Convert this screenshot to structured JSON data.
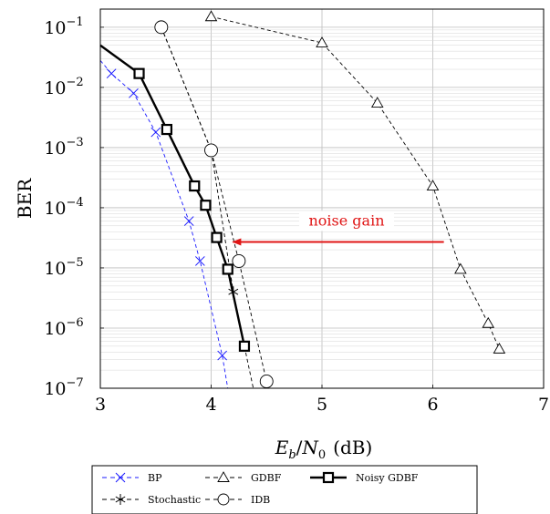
{
  "chart_data": {
    "type": "line",
    "xlabel": "E_b/N_0 (dB)",
    "xlabel_parts": {
      "e": "E",
      "b": "b",
      "slash": "/",
      "n": "N",
      "zero": "0",
      "unit": "(dB)"
    },
    "ylabel": "BER",
    "x_ticks": [
      "3",
      "4",
      "5",
      "6",
      "7"
    ],
    "y_ticks": [
      {
        "base": "10",
        "exp": "−1"
      },
      {
        "base": "10",
        "exp": "−2"
      },
      {
        "base": "10",
        "exp": "−3"
      },
      {
        "base": "10",
        "exp": "−4"
      },
      {
        "base": "10",
        "exp": "−5"
      },
      {
        "base": "10",
        "exp": "−6"
      },
      {
        "base": "10",
        "exp": "−7"
      }
    ],
    "xlim": [
      3,
      7
    ],
    "ylim": [
      1e-07,
      0.2
    ],
    "y_scale": "log",
    "grid": true,
    "legend_position": "below",
    "series": [
      {
        "name": "BP",
        "color": "#1a1aff",
        "dash": "dashed",
        "marker": "x",
        "x": [
          3.1,
          3.3,
          3.5,
          3.8,
          3.9,
          4.1
        ],
        "y": [
          0.017,
          0.008,
          0.0018,
          6e-05,
          1.3e-05,
          3.5e-07
        ],
        "line_x": [
          3.0,
          3.1,
          3.3,
          3.5,
          3.8,
          3.9,
          4.1,
          4.15
        ],
        "line_y": [
          0.028,
          0.017,
          0.008,
          0.0018,
          6e-05,
          1.3e-05,
          3.5e-07,
          1e-07
        ]
      },
      {
        "name": "Stochastic",
        "color": "#000000",
        "dash": "dashed",
        "marker": "star",
        "x": [
          4.2
        ],
        "y": [
          4e-06
        ],
        "line_x": [
          3.55,
          4.0,
          4.2,
          4.3,
          4.38
        ],
        "line_y": [
          0.1,
          0.0009,
          4e-06,
          5e-07,
          1e-07
        ]
      },
      {
        "name": "GDBF",
        "color": "#000000",
        "dash": "dashed",
        "marker": "triangle",
        "x": [
          4.0,
          5.0,
          5.5,
          6.0,
          6.25,
          6.5,
          6.6
        ],
        "y": [
          0.15,
          0.055,
          0.0055,
          0.00023,
          9.5e-06,
          1.2e-06,
          4.5e-07
        ],
        "line_x": [
          4.0,
          5.0,
          5.5,
          6.0,
          6.25,
          6.5,
          6.6
        ],
        "line_y": [
          0.15,
          0.055,
          0.0055,
          0.00023,
          9.5e-06,
          1.2e-06,
          4.5e-07
        ]
      },
      {
        "name": "IDB",
        "color": "#000000",
        "dash": "dashed",
        "marker": "circle",
        "x": [
          3.55,
          4.0,
          4.25,
          4.5
        ],
        "y": [
          0.1,
          0.0009,
          1.3e-05,
          1.3e-07
        ],
        "line_x": [
          3.55,
          4.0,
          4.25,
          4.5
        ],
        "line_y": [
          0.1,
          0.0009,
          1.3e-05,
          1.3e-07
        ]
      },
      {
        "name": "Noisy GDBF",
        "color": "#000000",
        "dash": "solid",
        "marker": "square",
        "x": [
          3.35,
          3.6,
          3.85,
          3.95,
          4.05,
          4.15,
          4.3
        ],
        "y": [
          0.017,
          0.002,
          0.00023,
          0.00011,
          3.2e-05,
          9.5e-06,
          5e-07
        ],
        "line_x": [
          3.0,
          3.35,
          3.6,
          3.85,
          3.95,
          4.05,
          4.15,
          4.3
        ],
        "line_y": [
          0.05,
          0.017,
          0.002,
          0.00023,
          0.00011,
          3.2e-05,
          9.5e-06,
          5e-07
        ]
      }
    ],
    "annotation": {
      "text": "noise gain",
      "color": "#e01515",
      "arrow_from": [
        6.1,
        2.7e-05
      ],
      "arrow_to": [
        4.18,
        2.7e-05
      ]
    }
  }
}
